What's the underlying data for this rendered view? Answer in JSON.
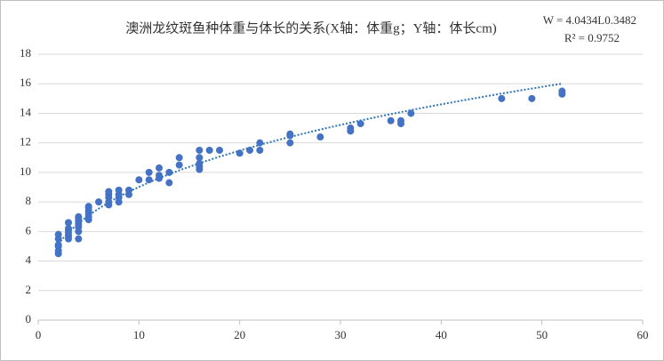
{
  "chart_data": {
    "type": "scatter",
    "title": "澳洲龙纹斑鱼种体重与体长的关系(X轴：体重g；Y轴：体长cm)",
    "equation": "W = 4.0434L0.3482",
    "r_squared": "R² = 0.9752",
    "color": "#4472c4",
    "x": [
      2,
      2,
      2,
      2,
      2,
      2,
      3,
      3,
      3,
      3,
      3,
      3,
      4,
      4,
      4,
      4,
      4,
      4,
      4,
      5,
      5,
      5,
      5,
      5,
      5,
      6,
      7,
      7,
      7,
      7,
      7,
      8,
      8,
      8,
      8,
      9,
      9,
      10,
      11,
      11,
      12,
      12,
      12,
      13,
      13,
      14,
      14,
      16,
      16,
      16,
      16,
      16,
      17,
      18,
      20,
      21,
      22,
      22,
      25,
      25,
      25,
      28,
      31,
      31,
      32,
      35,
      36,
      36,
      37,
      46,
      49,
      52,
      52
    ],
    "values": [
      4.5,
      4.7,
      5.0,
      5.1,
      5.5,
      5.8,
      5.5,
      5.7,
      5.9,
      6.1,
      6.2,
      6.6,
      5.5,
      6.0,
      6.3,
      6.5,
      6.7,
      6.9,
      7.0,
      6.8,
      7.0,
      7.2,
      7.4,
      7.6,
      7.7,
      8.0,
      7.8,
      8.0,
      8.3,
      8.5,
      8.7,
      8.0,
      8.3,
      8.5,
      8.8,
      8.5,
      8.8,
      9.5,
      9.5,
      10.0,
      9.6,
      9.8,
      10.3,
      9.3,
      10.0,
      10.5,
      11.0,
      10.2,
      10.4,
      10.6,
      11.0,
      11.5,
      11.5,
      11.5,
      11.3,
      11.5,
      11.5,
      12.0,
      12.0,
      12.5,
      12.6,
      12.4,
      12.8,
      13.0,
      13.3,
      13.5,
      13.3,
      13.5,
      14.0,
      15.0,
      15.0,
      15.3,
      15.5
    ],
    "trendline": {
      "type": "power",
      "a": 4.0434,
      "b": 0.3482,
      "color": "#2e75b6"
    },
    "xlim": [
      0,
      60
    ],
    "xticks": [
      0,
      10,
      20,
      30,
      40,
      50,
      60
    ],
    "ylim": [
      0,
      18
    ],
    "yticks": [
      0,
      2,
      4,
      6,
      8,
      10,
      12,
      14,
      16,
      18
    ],
    "grid": true
  }
}
